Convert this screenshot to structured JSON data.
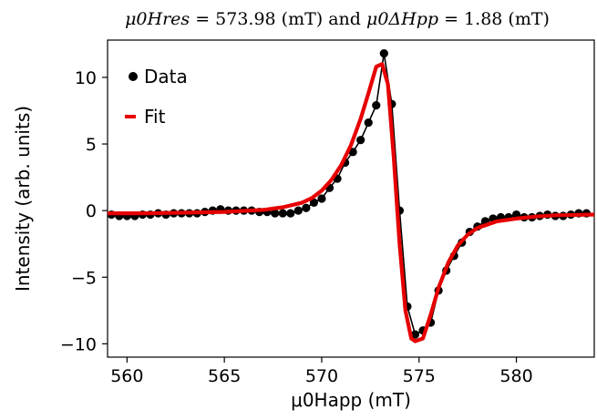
{
  "chart_data": {
    "type": "line",
    "title": "μ0Hres = 573.98 (mT) and μ0ΔHpp = 1.88 (mT)",
    "title_parts": {
      "h_res_symbol": "μ0Hres",
      "h_res_value": " = 573.98 (mT) and ",
      "dh_pp_symbol": "μ0ΔHpp",
      "dh_pp_value": " = 1.88 (mT)"
    },
    "xlabel": "μ0Happ (mT)",
    "ylabel": "Intensity (arb. units)",
    "xlim": [
      559,
      584
    ],
    "ylim": [
      -11,
      12.8
    ],
    "xticks": [
      560,
      565,
      570,
      575,
      580
    ],
    "yticks": [
      -10,
      -5,
      0,
      5,
      10
    ],
    "xtick_labels": [
      "560",
      "565",
      "570",
      "575",
      "580"
    ],
    "ytick_labels": [
      "−10",
      "−5",
      "0",
      "5",
      "10"
    ],
    "legend_position": "top-left",
    "colors": {
      "data": "#000000",
      "fit": "#e60000"
    },
    "series": [
      {
        "name": "Data",
        "style": "markers+line",
        "x": [
          559.2,
          559.6,
          560.0,
          560.4,
          560.8,
          561.2,
          561.6,
          562.0,
          562.4,
          562.8,
          563.2,
          563.6,
          564.0,
          564.4,
          564.8,
          565.2,
          565.6,
          566.0,
          566.4,
          566.8,
          567.2,
          567.6,
          568.0,
          568.4,
          568.8,
          569.2,
          569.6,
          570.0,
          570.4,
          570.8,
          571.2,
          571.6,
          572.0,
          572.4,
          572.8,
          573.2,
          573.6,
          574.0,
          574.4,
          574.8,
          575.2,
          575.6,
          576.0,
          576.4,
          576.8,
          577.2,
          577.6,
          578.0,
          578.4,
          578.8,
          579.2,
          579.6,
          580.0,
          580.4,
          580.8,
          581.2,
          581.6,
          582.0,
          582.4,
          582.8,
          583.2,
          583.6
        ],
        "y": [
          -0.3,
          -0.4,
          -0.4,
          -0.4,
          -0.3,
          -0.3,
          -0.2,
          -0.3,
          -0.2,
          -0.2,
          -0.2,
          -0.2,
          -0.1,
          0.0,
          0.1,
          0.0,
          0.0,
          0.0,
          0.0,
          -0.1,
          -0.1,
          -0.2,
          -0.2,
          -0.2,
          0.0,
          0.2,
          0.6,
          0.9,
          1.7,
          2.4,
          3.6,
          4.4,
          5.3,
          6.6,
          7.9,
          11.8,
          8.0,
          0.0,
          -7.2,
          -9.3,
          -9.0,
          -8.4,
          -6.0,
          -4.5,
          -3.4,
          -2.4,
          -1.6,
          -1.2,
          -0.8,
          -0.6,
          -0.5,
          -0.5,
          -0.3,
          -0.5,
          -0.5,
          -0.4,
          -0.3,
          -0.4,
          -0.4,
          -0.3,
          -0.2,
          -0.2
        ]
      },
      {
        "name": "Fit",
        "style": "line",
        "x": [
          559.0,
          561.0,
          563.0,
          565.0,
          567.0,
          568.0,
          569.0,
          569.5,
          570.0,
          570.5,
          571.0,
          571.5,
          572.0,
          572.4,
          572.8,
          573.1,
          573.4,
          573.7,
          574.0,
          574.3,
          574.6,
          574.8,
          575.2,
          575.6,
          576.0,
          576.5,
          577.0,
          577.5,
          578.0,
          579.0,
          580.0,
          581.0,
          582.0,
          584.0
        ],
        "y": [
          -0.2,
          -0.2,
          -0.15,
          -0.1,
          0.05,
          0.25,
          0.6,
          0.95,
          1.5,
          2.3,
          3.4,
          4.9,
          6.9,
          8.8,
          10.8,
          11.0,
          9.5,
          4.0,
          -2.5,
          -7.5,
          -9.6,
          -9.8,
          -9.6,
          -7.8,
          -5.8,
          -3.9,
          -2.6,
          -1.8,
          -1.3,
          -0.8,
          -0.6,
          -0.45,
          -0.35,
          -0.3
        ]
      }
    ]
  }
}
